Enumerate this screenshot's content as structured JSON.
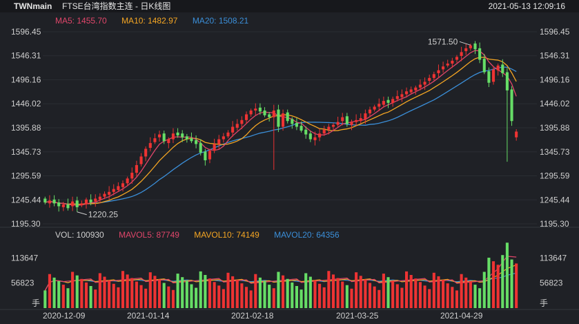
{
  "header": {
    "symbol": "TWNmain",
    "title": "FTSE台湾指数主连 - 日K线图",
    "datetime": "2021-05-13 12:09:16"
  },
  "price_legend": {
    "ma5": "MA5: 1455.70",
    "ma10": "MA10: 1482.97",
    "ma20": "MA20: 1508.21"
  },
  "volume_legend": {
    "vol": "VOL: 100930",
    "mavol5": "MAVOL5: 87749",
    "mavol10": "MAVOL10: 74149",
    "mavol20": "MAVOL20: 64356"
  },
  "colors": {
    "up": "#ee3333",
    "down": "#66dd66",
    "ma5": "#e0466a",
    "ma10": "#f5a623",
    "ma20": "#3b8fd9"
  },
  "chart_data": [
    {
      "type": "candlestick",
      "y_ticks": [
        "1596.45",
        "1546.31",
        "1496.16",
        "1446.02",
        "1395.88",
        "1345.73",
        "1295.59",
        "1245.44",
        "1195.30"
      ],
      "ylim": [
        1195.3,
        1596.45
      ],
      "annotations": {
        "high_label": "1571.50",
        "low_label": "1220.25"
      },
      "x_labels": [
        "2020-12-09",
        "2021-01-14",
        "2021-02-18",
        "2021-03-25",
        "2021-04-29"
      ],
      "closes": [
        1240,
        1244,
        1238,
        1232,
        1236,
        1228,
        1242,
        1230,
        1238,
        1246,
        1240,
        1248,
        1252,
        1258,
        1262,
        1268,
        1274,
        1280,
        1290,
        1302,
        1318,
        1336,
        1352,
        1364,
        1374,
        1382,
        1368,
        1372,
        1384,
        1380,
        1376,
        1372,
        1368,
        1362,
        1344,
        1328,
        1348,
        1362,
        1372,
        1378,
        1386,
        1398,
        1404,
        1412,
        1424,
        1432,
        1436,
        1430,
        1422,
        1418,
        1432,
        1398,
        1426,
        1410,
        1404,
        1398,
        1390,
        1382,
        1372,
        1376,
        1384,
        1392,
        1398,
        1402,
        1408,
        1418,
        1404,
        1408,
        1412,
        1416,
        1426,
        1434,
        1440,
        1446,
        1452,
        1448,
        1456,
        1462,
        1466,
        1472,
        1476,
        1480,
        1486,
        1492,
        1500,
        1508,
        1516,
        1524,
        1530,
        1536,
        1544,
        1554,
        1562,
        1568,
        1560,
        1538,
        1512,
        1490,
        1518,
        1526,
        1510,
        1474,
        1410,
        1388
      ],
      "opens": [
        1248,
        1238,
        1246,
        1240,
        1230,
        1236,
        1232,
        1244,
        1234,
        1236,
        1246,
        1242,
        1246,
        1252,
        1256,
        1262,
        1266,
        1272,
        1280,
        1290,
        1302,
        1320,
        1336,
        1354,
        1366,
        1376,
        1384,
        1364,
        1372,
        1386,
        1384,
        1378,
        1374,
        1370,
        1364,
        1346,
        1330,
        1348,
        1362,
        1372,
        1378,
        1386,
        1396,
        1404,
        1412,
        1424,
        1432,
        1438,
        1432,
        1424,
        1418,
        1434,
        1398,
        1428,
        1414,
        1406,
        1400,
        1392,
        1384,
        1370,
        1376,
        1384,
        1392,
        1398,
        1402,
        1410,
        1420,
        1402,
        1408,
        1410,
        1414,
        1426,
        1434,
        1440,
        1444,
        1454,
        1448,
        1456,
        1460,
        1466,
        1470,
        1474,
        1480,
        1486,
        1494,
        1500,
        1510,
        1518,
        1526,
        1530,
        1538,
        1546,
        1556,
        1562,
        1572,
        1562,
        1540,
        1514,
        1492,
        1516,
        1528,
        1512,
        1476,
        1376
      ],
      "volume_ylim": [
        0,
        150000
      ],
      "volume_y_ticks": [
        "113647",
        "56823"
      ],
      "volume_unit_label": "手"
    }
  ]
}
